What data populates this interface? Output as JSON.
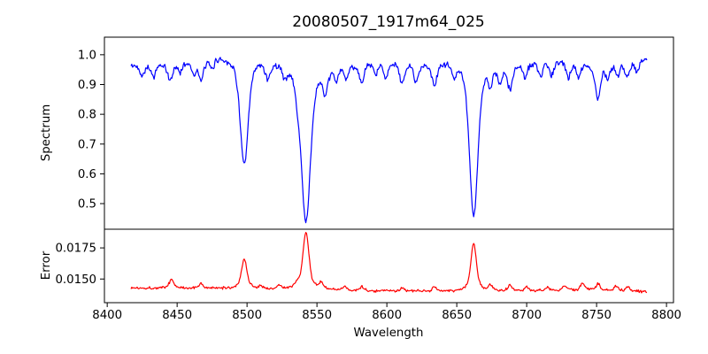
{
  "figure": {
    "title": "20080507_1917m64_025",
    "background": "#ffffff"
  },
  "chart_data": {
    "type": "line",
    "title": "20080507_1917m64_025",
    "xlabel": "Wavelength",
    "xlim": [
      8398,
      8805
    ],
    "xticks": [
      8400,
      8450,
      8500,
      8550,
      8600,
      8650,
      8700,
      8750,
      8800
    ],
    "x_start": 8417,
    "x_end": 8786,
    "n_points": 671,
    "grid": false,
    "legend": "none",
    "layout_hint": {
      "panels_stacked": true,
      "height_ratios": [
        2.6,
        1
      ],
      "shared_x": true
    },
    "panels": [
      {
        "name": "spectrum",
        "ylabel": "Spectrum",
        "color": "#0000ff",
        "ylim": [
          0.414,
          1.059
        ],
        "yticks": [
          0.5,
          0.6,
          0.7,
          0.8,
          0.9,
          1.0
        ],
        "ytick_decimals": 1,
        "description": "Normalized stellar spectrum, continuum near 1.0 with Ca II triplet absorption lines at 8498, 8542, 8662 dipping to 0.63, 0.44, 0.47",
        "noise_amplitude": 0.012,
        "continuum_anchors": [
          [
            8417,
            0.965
          ],
          [
            8430,
            0.97
          ],
          [
            8442,
            0.972
          ],
          [
            8455,
            0.98
          ],
          [
            8468,
            0.982
          ],
          [
            8480,
            1.0
          ],
          [
            8495,
            1.0
          ],
          [
            8508,
            0.998
          ],
          [
            8520,
            0.992
          ],
          [
            8532,
            0.985
          ],
          [
            8548,
            0.975
          ],
          [
            8562,
            0.972
          ],
          [
            8578,
            0.978
          ],
          [
            8595,
            0.982
          ],
          [
            8610,
            0.982
          ],
          [
            8625,
            0.978
          ],
          [
            8642,
            0.988
          ],
          [
            8658,
            0.998
          ],
          [
            8672,
            0.985
          ],
          [
            8690,
            0.975
          ],
          [
            8708,
            0.98
          ],
          [
            8726,
            0.983
          ],
          [
            8744,
            0.972
          ],
          [
            8762,
            0.978
          ],
          [
            8786,
            0.988
          ]
        ],
        "line_columns": [
          "center",
          "depth",
          "width"
        ],
        "absorption_lines": [
          [
            8425,
            0.035,
            1.3
          ],
          [
            8433,
            0.04,
            1.4
          ],
          [
            8445,
            0.055,
            1.6
          ],
          [
            8452,
            0.03,
            1.2
          ],
          [
            8462,
            0.035,
            1.3
          ],
          [
            8467,
            0.06,
            1.5
          ],
          [
            8475,
            0.03,
            1.2
          ],
          [
            8498.0,
            0.365,
            2.6
          ],
          [
            8515,
            0.055,
            1.7
          ],
          [
            8527,
            0.04,
            1.4
          ],
          [
            8536,
            0.045,
            1.3
          ],
          [
            8542.1,
            0.53,
            3.0
          ],
          [
            8556,
            0.08,
            1.6
          ],
          [
            8564,
            0.04,
            1.3
          ],
          [
            8571,
            0.045,
            1.3
          ],
          [
            8582,
            0.065,
            1.6
          ],
          [
            8592,
            0.04,
            1.2
          ],
          [
            8599,
            0.05,
            1.4
          ],
          [
            8611,
            0.07,
            1.7
          ],
          [
            8621,
            0.06,
            1.5
          ],
          [
            8634,
            0.08,
            1.6
          ],
          [
            8648,
            0.045,
            1.3
          ],
          [
            8662.1,
            0.525,
            2.8
          ],
          [
            8674,
            0.055,
            1.4
          ],
          [
            8681,
            0.06,
            1.4
          ],
          [
            8688,
            0.08,
            1.6
          ],
          [
            8699,
            0.045,
            1.3
          ],
          [
            8710,
            0.05,
            1.4
          ],
          [
            8718,
            0.045,
            1.3
          ],
          [
            8730,
            0.05,
            1.4
          ],
          [
            8737,
            0.045,
            1.2
          ],
          [
            8751,
            0.115,
            1.8
          ],
          [
            8758,
            0.05,
            1.3
          ],
          [
            8765,
            0.045,
            1.3
          ],
          [
            8772,
            0.05,
            1.4
          ],
          [
            8779,
            0.04,
            1.2
          ]
        ]
      },
      {
        "name": "error",
        "ylabel": "Error",
        "color": "#ff0000",
        "ylim": [
          0.0131,
          0.019
        ],
        "yticks": [
          0.015,
          0.0175
        ],
        "ytick_decimals": 4,
        "description": "Error spectrum, baseline near 0.0141 with peaks at the Ca II line positions reaching 0.0166, 0.0187, 0.0180",
        "noise_amplitude": 0.00013,
        "baseline_anchors": [
          [
            8417,
            0.01428
          ],
          [
            8460,
            0.01425
          ],
          [
            8500,
            0.0142
          ],
          [
            8530,
            0.01412
          ],
          [
            8560,
            0.01408
          ],
          [
            8600,
            0.01402
          ],
          [
            8640,
            0.01398
          ],
          [
            8680,
            0.01403
          ],
          [
            8720,
            0.01405
          ],
          [
            8750,
            0.01408
          ],
          [
            8786,
            0.01398
          ]
        ],
        "peak_columns": [
          "center",
          "height",
          "width"
        ],
        "emission_peaks": [
          [
            8446,
            0.0007,
            1.5
          ],
          [
            8467,
            0.0004,
            1.3
          ],
          [
            8498.0,
            0.00235,
            1.8
          ],
          [
            8510,
            0.0002,
            1.3
          ],
          [
            8523,
            0.0003,
            1.3
          ],
          [
            8536,
            0.0004,
            1.2
          ],
          [
            8542.1,
            0.00455,
            2.0
          ],
          [
            8553,
            0.0005,
            1.4
          ],
          [
            8570,
            0.0003,
            1.2
          ],
          [
            8582,
            0.0003,
            1.2
          ],
          [
            8611,
            0.0003,
            1.2
          ],
          [
            8634,
            0.0004,
            1.3
          ],
          [
            8662.1,
            0.00385,
            1.8
          ],
          [
            8674,
            0.0004,
            1.2
          ],
          [
            8688,
            0.0005,
            1.3
          ],
          [
            8700,
            0.0003,
            1.2
          ],
          [
            8715,
            0.0003,
            1.2
          ],
          [
            8727,
            0.0004,
            1.3
          ],
          [
            8740,
            0.0006,
            1.4
          ],
          [
            8751,
            0.0005,
            1.3
          ],
          [
            8764,
            0.0004,
            1.2
          ],
          [
            8772,
            0.0004,
            1.2
          ]
        ]
      }
    ]
  }
}
